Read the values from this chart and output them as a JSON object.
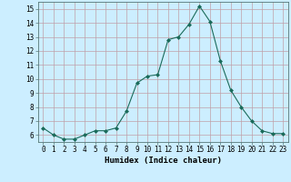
{
  "x": [
    0,
    1,
    2,
    3,
    4,
    5,
    6,
    7,
    8,
    9,
    10,
    11,
    12,
    13,
    14,
    15,
    16,
    17,
    18,
    19,
    20,
    21,
    22,
    23
  ],
  "y": [
    6.5,
    6.0,
    5.7,
    5.7,
    6.0,
    6.3,
    6.3,
    6.5,
    7.7,
    9.7,
    10.2,
    10.3,
    12.8,
    13.0,
    13.9,
    15.2,
    14.1,
    11.3,
    9.2,
    8.0,
    7.0,
    6.3,
    6.1,
    6.1
  ],
  "line_color": "#1a6b5a",
  "marker": "D",
  "marker_size": 2.0,
  "xlabel": "Humidex (Indice chaleur)",
  "bg_color": "#cceeff",
  "grid_color": "#c0a0a8",
  "xlim": [
    -0.5,
    23.5
  ],
  "ylim": [
    5.5,
    15.5
  ],
  "yticks": [
    6,
    7,
    8,
    9,
    10,
    11,
    12,
    13,
    14,
    15
  ],
  "xticks": [
    0,
    1,
    2,
    3,
    4,
    5,
    6,
    7,
    8,
    9,
    10,
    11,
    12,
    13,
    14,
    15,
    16,
    17,
    18,
    19,
    20,
    21,
    22,
    23
  ],
  "tick_fontsize": 5.5,
  "xlabel_fontsize": 6.5
}
